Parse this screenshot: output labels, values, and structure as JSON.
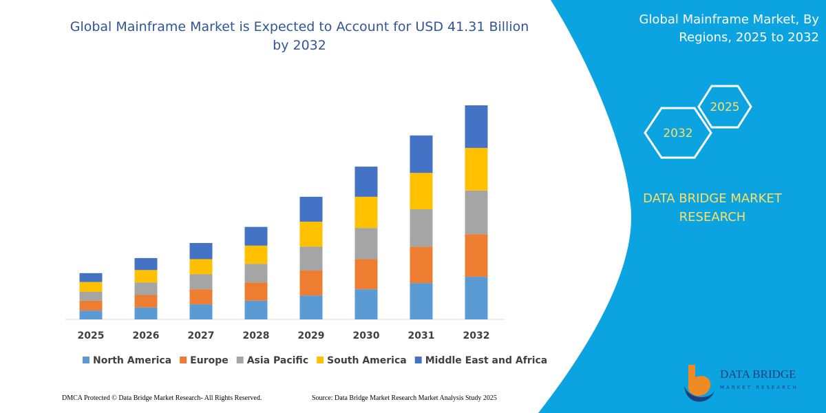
{
  "chart_data": {
    "type": "stacked_bar",
    "title": "Global Mainframe Market is Expected to Account for USD 41.31 Billion by 2032",
    "categories": [
      "2025",
      "2026",
      "2027",
      "2028",
      "2029",
      "2030",
      "2031",
      "2032"
    ],
    "series": [
      {
        "name": "North America",
        "color": "#5b9bd5",
        "values": [
          1.7,
          2.3,
          2.9,
          3.6,
          4.6,
          5.8,
          7.0,
          8.2
        ]
      },
      {
        "name": "Europe",
        "color": "#ed7d31",
        "values": [
          1.9,
          2.4,
          2.9,
          3.5,
          4.8,
          5.8,
          7.0,
          8.2
        ]
      },
      {
        "name": "Asia Pacific",
        "color": "#a5a5a5",
        "values": [
          1.7,
          2.4,
          2.9,
          3.6,
          4.6,
          6.0,
          7.2,
          8.4
        ]
      },
      {
        "name": "South America",
        "color": "#ffc000",
        "values": [
          1.9,
          2.4,
          2.9,
          3.5,
          4.8,
          6.0,
          7.0,
          8.2
        ]
      },
      {
        "name": "Middle East and Africa",
        "color": "#4472c4",
        "values": [
          1.7,
          2.3,
          3.1,
          3.6,
          4.8,
          5.8,
          7.2,
          8.2
        ]
      }
    ],
    "legend": "bottom"
  },
  "panel": {
    "title": "Global Mainframe Market, By Regions, 2025 to 2032",
    "hex_small": "2025",
    "hex_large": "2032",
    "brand": "DATA BRIDGE MARKET RESEARCH"
  },
  "logo": {
    "name": "DATA BRIDGE",
    "tagline": "MARKET RESEARCH"
  },
  "footer": {
    "left": "DMCA Protected © Data Bridge Market Research-  All Rights Reserved.",
    "right": "Source: Data Bridge Market Research  Market Analysis Study 2025"
  }
}
